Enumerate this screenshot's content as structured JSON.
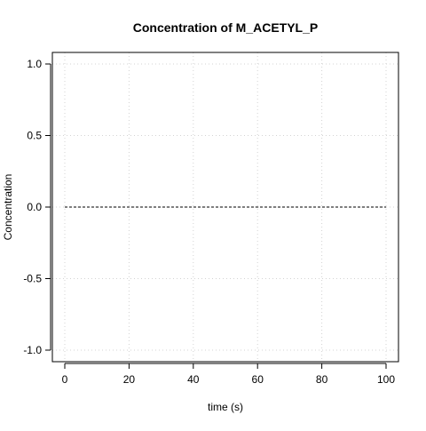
{
  "chart_data": {
    "type": "line",
    "title": "Concentration of M_ACETYL_P",
    "xlabel": "time (s)",
    "ylabel": "Concentration",
    "xlim": [
      0,
      100
    ],
    "ylim": [
      -1.0,
      1.0
    ],
    "x_ticks": [
      0,
      20,
      40,
      60,
      80,
      100
    ],
    "x_tick_labels": [
      "0",
      "20",
      "40",
      "60",
      "80",
      "100"
    ],
    "y_ticks": [
      -1.0,
      -0.5,
      0.0,
      0.5,
      1.0
    ],
    "y_tick_labels": [
      "-1.0",
      "-0.5",
      "0.0",
      "0.5",
      "1.0"
    ],
    "grid": true,
    "legend": "none",
    "series": [
      {
        "x": [
          0,
          100
        ],
        "y": [
          0,
          0
        ],
        "color": "#000000",
        "line_style": "dashed"
      }
    ]
  }
}
